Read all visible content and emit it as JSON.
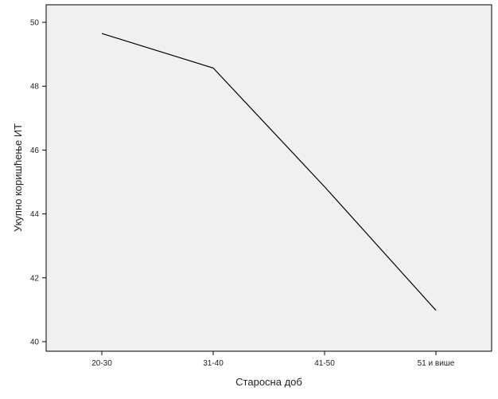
{
  "chart_data": {
    "type": "line",
    "title": "",
    "xlabel": "Старосна доб",
    "ylabel": "Укупно коришћење ИТ",
    "categories": [
      "20-30",
      "31-40",
      "41-50",
      "51 и више"
    ],
    "series": [
      {
        "values": [
          49.65,
          48.57,
          44.85,
          40.98
        ]
      }
    ],
    "ylim": [
      39.7,
      50.55
    ],
    "yticks": [
      40,
      42,
      44,
      46,
      48,
      50
    ],
    "grid": false,
    "legend": "none",
    "colors": {
      "plot_background": "#f0f0f0",
      "line": "#000000",
      "axis": "#000000"
    }
  }
}
